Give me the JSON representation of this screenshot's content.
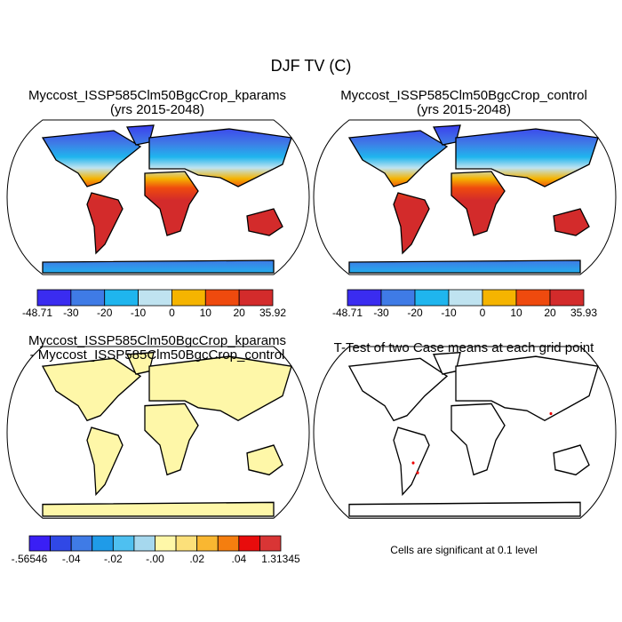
{
  "title": "DJF TV (C)",
  "panels": [
    {
      "title": [
        "Myccost_ISSP585Clm50BgcCrop_kparams",
        "(yrs 2015-2048)"
      ],
      "colorbar": {
        "colors": [
          "#3a2cf0",
          "#3f7be6",
          "#1fb5ee",
          "#bfe3f0",
          "#f5b400",
          "#ef4a0e",
          "#d32b2b"
        ],
        "labels": [
          "-48.71",
          "-30",
          "-20",
          "-10",
          "0",
          "10",
          "20",
          "35.92"
        ]
      }
    },
    {
      "title": [
        "Myccost_ISSP585Clm50BgcCrop_control",
        "(yrs 2015-2048)"
      ],
      "colorbar": {
        "colors": [
          "#3a2cf0",
          "#3f7be6",
          "#1fb5ee",
          "#bfe3f0",
          "#f5b400",
          "#ef4a0e",
          "#d32b2b"
        ],
        "labels": [
          "-48.71",
          "-30",
          "-20",
          "-10",
          "0",
          "10",
          "20",
          "35.93"
        ]
      }
    },
    {
      "title": [
        "Myccost_ISSP585Clm50BgcCrop_kparams",
        "- Myccost_ISSP585Clm50BgcCrop_control"
      ],
      "colorbar": {
        "colors": [
          "#3a1ff5",
          "#3048e6",
          "#3f7be6",
          "#1f9be8",
          "#4ec0f0",
          "#a6d8ee",
          "#fef7a8",
          "#fce07a",
          "#f9b731",
          "#f57e0f",
          "#e80c0c",
          "#d93535"
        ],
        "labels": [
          "-.56546",
          "-.04",
          "-.02",
          "-.00",
          ".02",
          ".04",
          "1.31345"
        ]
      }
    },
    {
      "title": [
        "T-Test of two Case means at each grid point"
      ],
      "note": "Cells are significant at 0.1 level"
    }
  ]
}
